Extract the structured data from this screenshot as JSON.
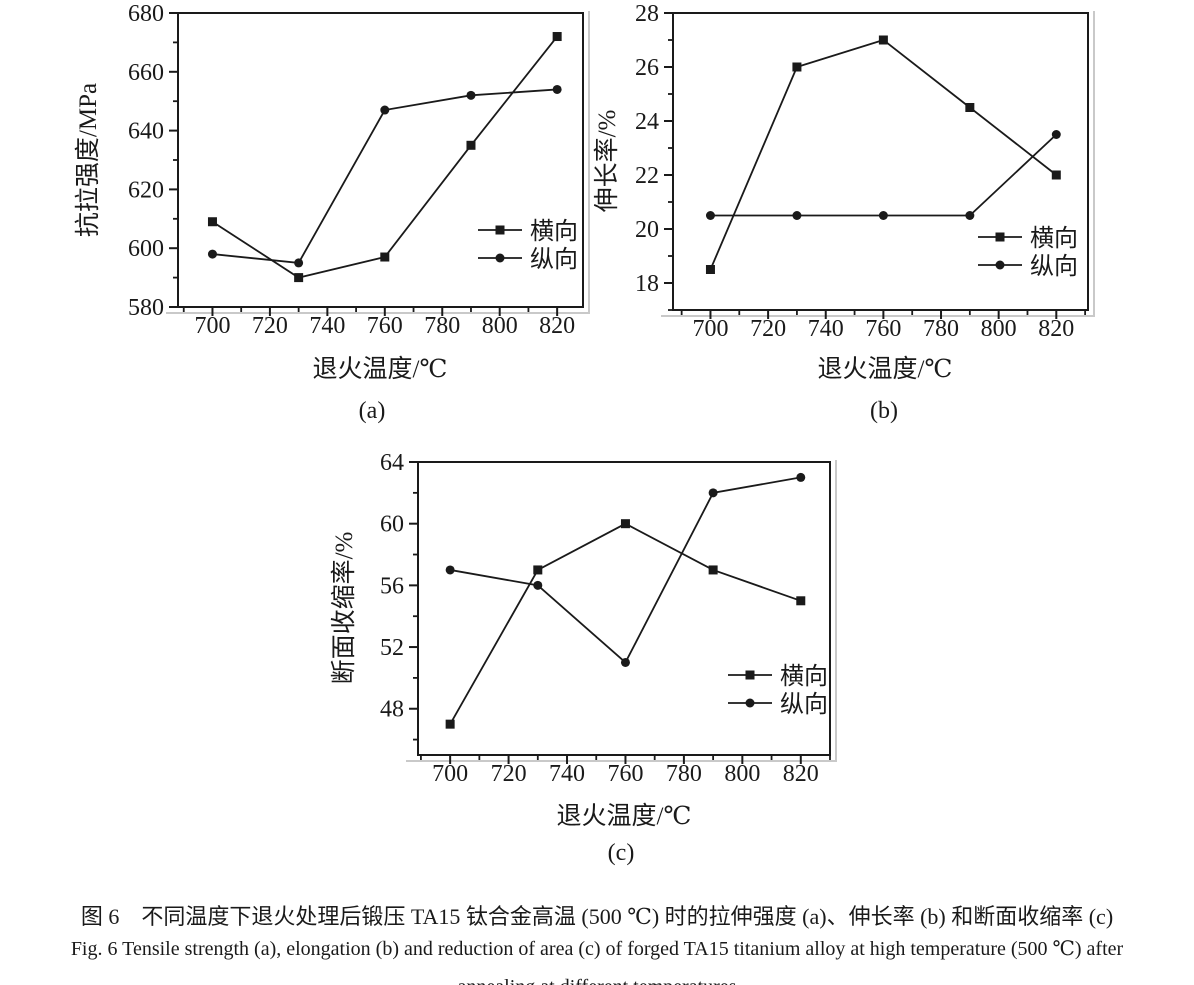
{
  "figure": {
    "captions": {
      "chinese": "图 6　不同温度下退火处理后锻压 TA15 钛合金高温 (500 ℃) 时的拉伸强度 (a)、伸长率 (b) 和断面收缩率 (c)",
      "english_line1": "Fig. 6   Tensile strength (a), elongation (b) and reduction of area (c) of forged TA15 titanium alloy at high temperature (500 ℃) after",
      "english_line2": "annealing at different temperatures"
    }
  },
  "colors": {
    "ink": "#1a1a1a",
    "scan_shadow": "#c9c9c9",
    "background": "#ffffff"
  },
  "chart_data": [
    {
      "id": "a",
      "type": "line",
      "sublabel": "(a)",
      "xlabel": "退火温度/℃",
      "ylabel": "抗拉强度/MPa",
      "x": [
        700,
        730,
        760,
        790,
        820
      ],
      "xlim": [
        688,
        829
      ],
      "ylim": [
        580,
        680
      ],
      "x_ticks": [
        700,
        720,
        740,
        760,
        780,
        800,
        820
      ],
      "x_minor_step": 10,
      "y_ticks": [
        580,
        600,
        620,
        640,
        660,
        680
      ],
      "y_minor_step": 10,
      "grid": "off",
      "legend_position": "right-lower-inside",
      "series": [
        {
          "name": "横向",
          "marker": "square",
          "values": [
            609,
            590,
            597,
            635,
            672
          ]
        },
        {
          "name": "纵向",
          "marker": "circle",
          "values": [
            598,
            595,
            647,
            652,
            654
          ]
        }
      ]
    },
    {
      "id": "b",
      "type": "line",
      "sublabel": "(b)",
      "xlabel": "退火温度/℃",
      "ylabel": "伸长率/%",
      "x": [
        700,
        730,
        760,
        790,
        820
      ],
      "xlim": [
        687,
        831
      ],
      "ylim": [
        17,
        28
      ],
      "x_ticks": [
        700,
        720,
        740,
        760,
        780,
        800,
        820
      ],
      "x_minor_step": 10,
      "y_ticks": [
        18,
        20,
        22,
        24,
        26,
        28
      ],
      "y_minor_step": 1,
      "grid": "off",
      "legend_position": "right-lower-inside",
      "series": [
        {
          "name": "横向",
          "marker": "square",
          "values": [
            18.5,
            26,
            27,
            24.5,
            22
          ]
        },
        {
          "name": "纵向",
          "marker": "circle",
          "values": [
            20.5,
            20.5,
            20.5,
            20.5,
            23.5
          ]
        }
      ]
    },
    {
      "id": "c",
      "type": "line",
      "sublabel": "(c)",
      "xlabel": "退火温度/℃",
      "ylabel": "断面收缩率/%",
      "x": [
        700,
        730,
        760,
        790,
        820
      ],
      "xlim": [
        689,
        830
      ],
      "ylim": [
        45,
        64
      ],
      "x_ticks": [
        700,
        720,
        740,
        760,
        780,
        800,
        820
      ],
      "x_minor_step": 10,
      "y_ticks": [
        48,
        52,
        56,
        60,
        64
      ],
      "y_minor_step": 2,
      "grid": "off",
      "legend_position": "right-lower-inside",
      "series": [
        {
          "name": "横向",
          "marker": "square",
          "values": [
            47,
            57,
            60,
            57,
            55
          ]
        },
        {
          "name": "纵向",
          "marker": "circle",
          "values": [
            57,
            56,
            51,
            62,
            63
          ]
        }
      ]
    }
  ]
}
